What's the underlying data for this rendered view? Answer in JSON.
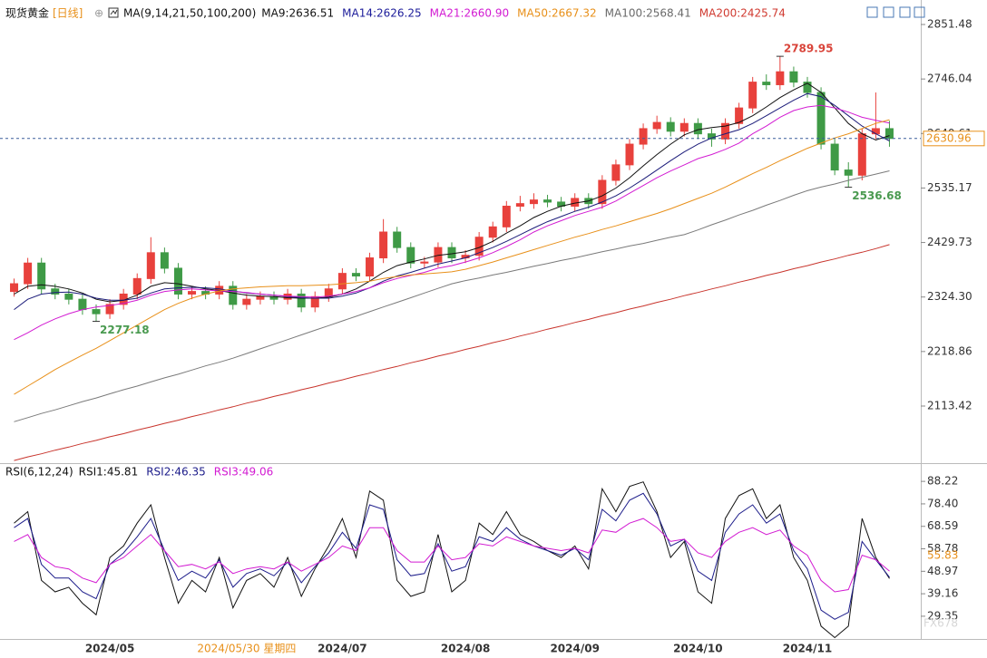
{
  "header": {
    "title": "现货黄金",
    "period": "[日线]"
  },
  "chart_data": [
    {
      "type": "candlestick",
      "indicator": "MA(9,14,21,50,100,200)",
      "categories": [
        null,
        null,
        null,
        null,
        null,
        null,
        null,
        "2024/05",
        null,
        null,
        null,
        null,
        null,
        null,
        null,
        null,
        null,
        null,
        null,
        null,
        null,
        null,
        null,
        null,
        "2024/07",
        null,
        null,
        null,
        null,
        null,
        null,
        null,
        null,
        "2024/08",
        null,
        null,
        null,
        null,
        null,
        null,
        null,
        "2024/09",
        null,
        null,
        null,
        null,
        null,
        null,
        null,
        null,
        "2024/10",
        null,
        null,
        null,
        null,
        null,
        null,
        null,
        "2024/11",
        null,
        null,
        null,
        null,
        null,
        null
      ],
      "crosshair_label": "2024/05/30 星期四",
      "open": [
        2335,
        2350,
        2390,
        2340,
        2330,
        2320,
        2300,
        2292,
        2310,
        2330,
        2360,
        2410,
        2380,
        2330,
        2335,
        2330,
        2345,
        2310,
        2320,
        2325,
        2320,
        2330,
        2305,
        2325,
        2340,
        2370,
        2365,
        2400,
        2450,
        2420,
        2390,
        2392,
        2420,
        2400,
        2405,
        2440,
        2460,
        2500,
        2505,
        2512,
        2508,
        2500,
        2515,
        2505,
        2550,
        2580,
        2620,
        2650,
        2662,
        2645,
        2660,
        2640,
        2630,
        2660,
        2690,
        2740,
        2735,
        2760,
        2740,
        2720,
        2620,
        2570,
        2560,
        2640,
        2650
      ],
      "high": [
        2360,
        2400,
        2400,
        2350,
        2340,
        2330,
        2310,
        2320,
        2340,
        2370,
        2440,
        2420,
        2390,
        2345,
        2345,
        2355,
        2355,
        2330,
        2335,
        2335,
        2340,
        2340,
        2335,
        2350,
        2380,
        2380,
        2410,
        2475,
        2460,
        2430,
        2402,
        2430,
        2430,
        2415,
        2450,
        2470,
        2510,
        2520,
        2525,
        2522,
        2518,
        2525,
        2525,
        2560,
        2590,
        2630,
        2660,
        2675,
        2672,
        2670,
        2670,
        2650,
        2670,
        2700,
        2750,
        2755,
        2789.95,
        2770,
        2750,
        2730,
        2630,
        2585,
        2650,
        2720,
        2665
      ],
      "low": [
        2325,
        2340,
        2330,
        2320,
        2310,
        2290,
        2277.18,
        2282,
        2300,
        2320,
        2350,
        2370,
        2320,
        2320,
        2320,
        2320,
        2300,
        2300,
        2310,
        2310,
        2310,
        2295,
        2295,
        2315,
        2330,
        2355,
        2355,
        2390,
        2410,
        2380,
        2380,
        2382,
        2390,
        2390,
        2395,
        2430,
        2450,
        2490,
        2495,
        2498,
        2490,
        2490,
        2495,
        2495,
        2540,
        2570,
        2610,
        2640,
        2635,
        2635,
        2630,
        2615,
        2620,
        2650,
        2680,
        2725,
        2725,
        2730,
        2710,
        2610,
        2560,
        2536.68,
        2550,
        2630,
        2615
      ],
      "close": [
        2350,
        2390,
        2340,
        2330,
        2320,
        2300,
        2292,
        2310,
        2330,
        2360,
        2410,
        2380,
        2330,
        2335,
        2330,
        2345,
        2310,
        2320,
        2325,
        2320,
        2330,
        2305,
        2325,
        2340,
        2370,
        2365,
        2400,
        2450,
        2420,
        2390,
        2392,
        2420,
        2400,
        2405,
        2440,
        2460,
        2500,
        2505,
        2512,
        2508,
        2500,
        2515,
        2505,
        2550,
        2580,
        2620,
        2650,
        2662,
        2645,
        2660,
        2640,
        2630,
        2660,
        2690,
        2740,
        2735,
        2760,
        2740,
        2720,
        2620,
        2570,
        2560,
        2640,
        2650,
        2631
      ],
      "up_color": "#e8413c",
      "down_color": "#3f9a46",
      "series": [
        {
          "name": "MA9:2636.51",
          "color": "#111111",
          "legend_color": "#111111",
          "values": [
            2330,
            2345,
            2348,
            2345,
            2340,
            2332,
            2320,
            2315,
            2318,
            2328,
            2345,
            2352,
            2350,
            2345,
            2340,
            2337,
            2332,
            2328,
            2326,
            2325,
            2323,
            2322,
            2322,
            2324,
            2330,
            2340,
            2355,
            2372,
            2385,
            2392,
            2398,
            2405,
            2408,
            2412,
            2420,
            2432,
            2448,
            2462,
            2478,
            2490,
            2500,
            2506,
            2510,
            2520,
            2535,
            2555,
            2578,
            2600,
            2620,
            2638,
            2648,
            2652,
            2655,
            2662,
            2675,
            2692,
            2710,
            2725,
            2738,
            2720,
            2690,
            2660,
            2640,
            2628,
            2636.51
          ]
        },
        {
          "name": "MA14:2626.25",
          "color": "#1c1c7a",
          "legend_color": "#1c1c9a",
          "values": [
            2300,
            2320,
            2330,
            2333,
            2334,
            2330,
            2322,
            2318,
            2318,
            2322,
            2332,
            2340,
            2342,
            2343,
            2342,
            2340,
            2336,
            2332,
            2330,
            2328,
            2325,
            2323,
            2322,
            2322,
            2326,
            2332,
            2342,
            2355,
            2365,
            2372,
            2380,
            2388,
            2394,
            2400,
            2410,
            2420,
            2432,
            2445,
            2458,
            2470,
            2480,
            2490,
            2498,
            2508,
            2520,
            2535,
            2552,
            2570,
            2588,
            2605,
            2620,
            2632,
            2640,
            2648,
            2660,
            2675,
            2690,
            2705,
            2718,
            2712,
            2695,
            2675,
            2655,
            2640,
            2626.25
          ]
        },
        {
          "name": "MA21:2660.90",
          "color": "#d21bd2",
          "legend_color": "#d21bd2",
          "values": [
            2242,
            2255,
            2270,
            2282,
            2292,
            2300,
            2305,
            2308,
            2312,
            2318,
            2328,
            2335,
            2338,
            2340,
            2338,
            2336,
            2335,
            2333,
            2330,
            2328,
            2326,
            2325,
            2324,
            2326,
            2330,
            2335,
            2342,
            2352,
            2360,
            2366,
            2372,
            2380,
            2385,
            2392,
            2400,
            2410,
            2422,
            2435,
            2450,
            2462,
            2472,
            2482,
            2490,
            2498,
            2510,
            2525,
            2540,
            2555,
            2568,
            2580,
            2592,
            2600,
            2610,
            2622,
            2640,
            2655,
            2672,
            2685,
            2692,
            2695,
            2690,
            2682,
            2672,
            2666,
            2660.9
          ]
        },
        {
          "name": "MA50:2667.32",
          "color": "#e8901a",
          "legend_color": "#e8901a",
          "values": [
            2136,
            2152,
            2168,
            2184,
            2198,
            2212,
            2225,
            2240,
            2255,
            2270,
            2285,
            2300,
            2312,
            2322,
            2330,
            2336,
            2340,
            2342,
            2344,
            2345,
            2346,
            2346,
            2347,
            2348,
            2350,
            2352,
            2355,
            2360,
            2364,
            2367,
            2369,
            2371,
            2373,
            2378,
            2385,
            2392,
            2400,
            2408,
            2416,
            2424,
            2432,
            2440,
            2447,
            2455,
            2462,
            2470,
            2478,
            2486,
            2495,
            2505,
            2515,
            2525,
            2537,
            2550,
            2563,
            2575,
            2588,
            2600,
            2612,
            2622,
            2632,
            2640,
            2650,
            2660,
            2667.32
          ]
        },
        {
          "name": "MA100:2568.41",
          "color": "#7a7a7a",
          "legend_color": "#6a6a6a",
          "values": [
            2083,
            2091,
            2099,
            2106,
            2114,
            2122,
            2129,
            2137,
            2145,
            2152,
            2160,
            2168,
            2175,
            2183,
            2191,
            2198,
            2206,
            2215,
            2224,
            2233,
            2242,
            2251,
            2260,
            2269,
            2278,
            2287,
            2296,
            2305,
            2314,
            2323,
            2332,
            2341,
            2350,
            2356,
            2361,
            2367,
            2372,
            2378,
            2384,
            2389,
            2395,
            2400,
            2406,
            2412,
            2417,
            2423,
            2428,
            2434,
            2440,
            2445,
            2454,
            2464,
            2473,
            2483,
            2492,
            2502,
            2511,
            2521,
            2530,
            2537,
            2543,
            2550,
            2556,
            2562,
            2568.41
          ]
        },
        {
          "name": "MA200:2425.74",
          "color": "#c8342c",
          "legend_color": "#d03a30",
          "values": [
            2008,
            2015,
            2021,
            2028,
            2034,
            2041,
            2047,
            2054,
            2060,
            2067,
            2073,
            2080,
            2086,
            2093,
            2099,
            2106,
            2112,
            2119,
            2125,
            2132,
            2138,
            2145,
            2151,
            2158,
            2164,
            2171,
            2177,
            2184,
            2190,
            2197,
            2203,
            2210,
            2216,
            2223,
            2229,
            2236,
            2242,
            2249,
            2255,
            2262,
            2268,
            2275,
            2281,
            2288,
            2294,
            2301,
            2307,
            2314,
            2320,
            2327,
            2333,
            2340,
            2346,
            2353,
            2359,
            2366,
            2372,
            2379,
            2385,
            2392,
            2398,
            2405,
            2411,
            2418,
            2425.74
          ]
        }
      ],
      "annotations": [
        {
          "value": 2789.95
        },
        {
          "value": 2536.68
        },
        {
          "value": 2277.18
        }
      ],
      "last_price": 2630.96,
      "ylim": [
        2004.7,
        2863.8
      ],
      "yticks": [
        2851.48,
        2746.04,
        2640.61,
        2535.17,
        2429.73,
        {
          "value": 2324.3,
          "label": "2324.30"
        },
        2218.86,
        2113.42
      ],
      "grid": false
    },
    {
      "type": "line",
      "indicator": "RSI(6,12,24)",
      "series": [
        {
          "name": "RSI1:45.81",
          "color": "#111111",
          "values": [
            70,
            75,
            45,
            40,
            42,
            35,
            30,
            55,
            60,
            70,
            78,
            55,
            35,
            45,
            40,
            55,
            33,
            45,
            48,
            42,
            55,
            38,
            50,
            60,
            72,
            55,
            84,
            80,
            45,
            38,
            40,
            65,
            40,
            45,
            70,
            65,
            75,
            65,
            62,
            58,
            55,
            60,
            50,
            85,
            75,
            86,
            88,
            75,
            55,
            62,
            40,
            35,
            72,
            82,
            85,
            72,
            78,
            55,
            45,
            25,
            20,
            25,
            72,
            55,
            45.81
          ]
        },
        {
          "name": "RSI2:46.35",
          "color": "#1c1c8a",
          "values": [
            68,
            72,
            52,
            46,
            46,
            40,
            37,
            52,
            57,
            64,
            72,
            58,
            45,
            49,
            46,
            54,
            42,
            48,
            50,
            47,
            53,
            44,
            51,
            57,
            66,
            59,
            78,
            76,
            54,
            47,
            48,
            61,
            49,
            51,
            64,
            62,
            68,
            63,
            60,
            58,
            56,
            59,
            54,
            76,
            71,
            80,
            83,
            74,
            60,
            63,
            49,
            45,
            66,
            74,
            78,
            70,
            74,
            58,
            50,
            32,
            28,
            31,
            62,
            54,
            46.35
          ]
        },
        {
          "name": "RSI3:49.06",
          "color": "#d21bd2",
          "values": [
            62,
            65,
            55,
            51,
            50,
            46,
            44,
            52,
            55,
            60,
            65,
            58,
            51,
            52,
            50,
            53,
            48,
            50,
            51,
            50,
            53,
            49,
            52,
            55,
            60,
            58,
            68,
            68,
            58,
            53,
            53,
            60,
            54,
            55,
            61,
            60,
            64,
            62,
            60,
            59,
            58,
            59,
            57,
            67,
            66,
            70,
            72,
            68,
            62,
            63,
            57,
            55,
            62,
            66,
            68,
            65,
            67,
            60,
            56,
            45,
            40,
            41,
            56,
            54,
            49.06
          ]
        }
      ],
      "marker": 55.83,
      "ylim": [
        21.4,
        94.6
      ],
      "yticks": [
        88.22,
        {
          "value": 78.4,
          "label": "78.40"
        },
        68.59,
        58.78,
        48.97,
        39.16,
        29.35
      ],
      "grid": false
    }
  ],
  "watermark": "FX678"
}
